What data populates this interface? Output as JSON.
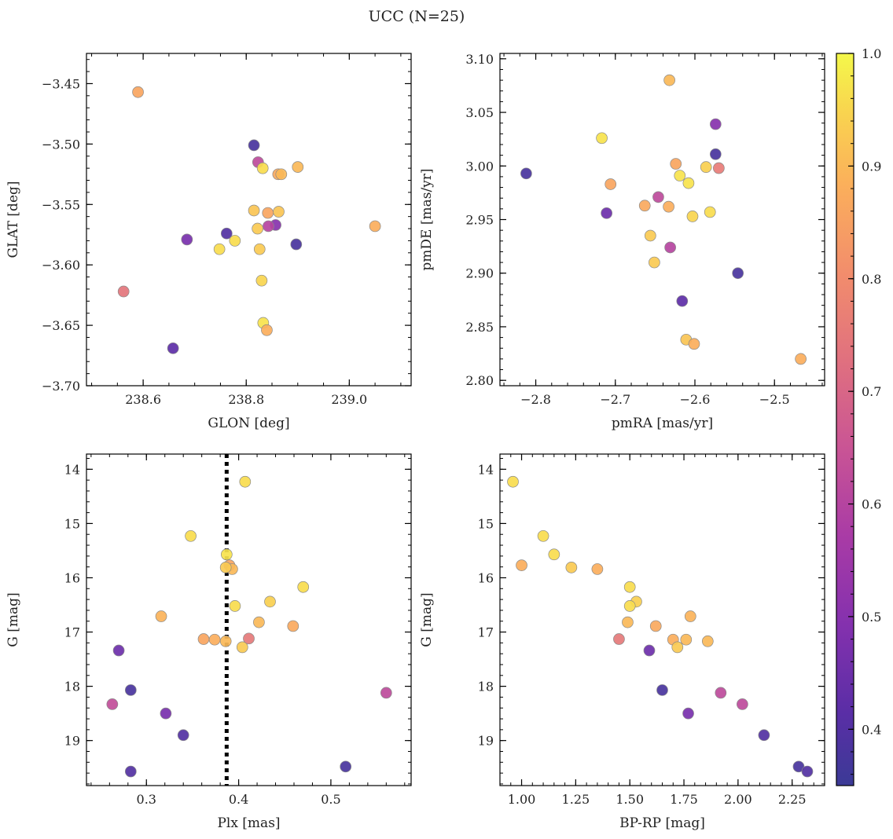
{
  "figure": {
    "title": "UCC (N=25)",
    "colorbar": {
      "min": 0.35,
      "max": 1.0,
      "ticks": [
        0.4,
        0.5,
        0.6,
        0.7,
        0.8,
        0.9,
        1.0
      ],
      "colormap": "plasma"
    }
  },
  "chart_data": [
    {
      "type": "scatter",
      "xlabel": "GLON [deg]",
      "ylabel": "GLAT [deg]",
      "xlim": [
        238.49,
        239.12
      ],
      "ylim": [
        -3.7,
        -3.425
      ],
      "xticks": [
        238.6,
        238.8,
        239.0
      ],
      "yticks": [
        -3.45,
        -3.5,
        -3.55,
        -3.6,
        -3.65,
        -3.7
      ],
      "points": [
        {
          "x": 238.59,
          "y": -3.457,
          "c": 0.86
        },
        {
          "x": 238.815,
          "y": -3.501,
          "c": 0.38
        },
        {
          "x": 238.823,
          "y": -3.515,
          "c": 0.62
        },
        {
          "x": 238.832,
          "y": -3.52,
          "c": 0.96
        },
        {
          "x": 238.9,
          "y": -3.519,
          "c": 0.9
        },
        {
          "x": 238.862,
          "y": -3.525,
          "c": 0.87
        },
        {
          "x": 238.868,
          "y": -3.525,
          "c": 0.9
        },
        {
          "x": 238.815,
          "y": -3.555,
          "c": 0.92
        },
        {
          "x": 238.863,
          "y": -3.556,
          "c": 0.92
        },
        {
          "x": 238.842,
          "y": -3.557,
          "c": 0.86
        },
        {
          "x": 239.05,
          "y": -3.568,
          "c": 0.88
        },
        {
          "x": 238.857,
          "y": -3.567,
          "c": 0.5
        },
        {
          "x": 238.843,
          "y": -3.568,
          "c": 0.6
        },
        {
          "x": 238.822,
          "y": -3.57,
          "c": 0.93
        },
        {
          "x": 238.762,
          "y": -3.574,
          "c": 0.4
        },
        {
          "x": 238.685,
          "y": -3.579,
          "c": 0.47
        },
        {
          "x": 238.778,
          "y": -3.58,
          "c": 0.96
        },
        {
          "x": 238.897,
          "y": -3.583,
          "c": 0.38
        },
        {
          "x": 238.748,
          "y": -3.587,
          "c": 0.96
        },
        {
          "x": 238.826,
          "y": -3.587,
          "c": 0.93
        },
        {
          "x": 238.83,
          "y": -3.613,
          "c": 0.95
        },
        {
          "x": 238.562,
          "y": -3.622,
          "c": 0.74
        },
        {
          "x": 238.833,
          "y": -3.648,
          "c": 0.97
        },
        {
          "x": 238.84,
          "y": -3.654,
          "c": 0.88
        },
        {
          "x": 238.658,
          "y": -3.669,
          "c": 0.42
        }
      ]
    },
    {
      "type": "scatter",
      "xlabel": "pmRA [mas/yr]",
      "ylabel": "pmDE [mas/yr]",
      "xlim": [
        -2.845,
        -2.437
      ],
      "ylim": [
        2.795,
        3.105
      ],
      "xticks": [
        -2.8,
        -2.7,
        -2.6,
        -2.5
      ],
      "yticks": [
        2.8,
        2.85,
        2.9,
        2.95,
        3.0,
        3.05,
        3.1
      ],
      "points": [
        {
          "x": -2.632,
          "y": 3.08,
          "c": 0.9
        },
        {
          "x": -2.574,
          "y": 3.039,
          "c": 0.5
        },
        {
          "x": -2.717,
          "y": 3.026,
          "c": 0.97
        },
        {
          "x": -2.574,
          "y": 3.011,
          "c": 0.38
        },
        {
          "x": -2.624,
          "y": 3.002,
          "c": 0.86
        },
        {
          "x": -2.586,
          "y": 2.999,
          "c": 0.94
        },
        {
          "x": -2.57,
          "y": 2.998,
          "c": 0.76
        },
        {
          "x": -2.812,
          "y": 2.993,
          "c": 0.38
        },
        {
          "x": -2.619,
          "y": 2.991,
          "c": 0.97
        },
        {
          "x": -2.706,
          "y": 2.983,
          "c": 0.86
        },
        {
          "x": -2.608,
          "y": 2.984,
          "c": 0.97
        },
        {
          "x": -2.646,
          "y": 2.971,
          "c": 0.62
        },
        {
          "x": -2.663,
          "y": 2.963,
          "c": 0.87
        },
        {
          "x": -2.633,
          "y": 2.962,
          "c": 0.88
        },
        {
          "x": -2.711,
          "y": 2.956,
          "c": 0.45
        },
        {
          "x": -2.581,
          "y": 2.957,
          "c": 0.96
        },
        {
          "x": -2.603,
          "y": 2.953,
          "c": 0.95
        },
        {
          "x": -2.656,
          "y": 2.935,
          "c": 0.93
        },
        {
          "x": -2.631,
          "y": 2.924,
          "c": 0.6
        },
        {
          "x": -2.651,
          "y": 2.91,
          "c": 0.93
        },
        {
          "x": -2.546,
          "y": 2.9,
          "c": 0.38
        },
        {
          "x": -2.616,
          "y": 2.874,
          "c": 0.42
        },
        {
          "x": -2.611,
          "y": 2.838,
          "c": 0.92
        },
        {
          "x": -2.601,
          "y": 2.834,
          "c": 0.88
        },
        {
          "x": -2.467,
          "y": 2.82,
          "c": 0.88
        }
      ]
    },
    {
      "type": "scatter",
      "xlabel": "Plx [mas]",
      "ylabel": "G [mag]",
      "xlim": [
        0.235,
        0.587
      ],
      "ylim": [
        19.83,
        13.72
      ],
      "y_inverted": true,
      "xticks": [
        0.3,
        0.4,
        0.5
      ],
      "yticks": [
        14,
        15,
        16,
        17,
        18,
        19
      ],
      "vline": {
        "x": 0.387,
        "style": "dotted",
        "color": "#000000"
      },
      "points": [
        {
          "x": 0.407,
          "y": 14.23,
          "c": 0.96
        },
        {
          "x": 0.348,
          "y": 15.23,
          "c": 0.96
        },
        {
          "x": 0.387,
          "y": 15.57,
          "c": 0.97
        },
        {
          "x": 0.39,
          "y": 15.77,
          "c": 0.86
        },
        {
          "x": 0.393,
          "y": 15.84,
          "c": 0.9
        },
        {
          "x": 0.386,
          "y": 15.81,
          "c": 0.93
        },
        {
          "x": 0.47,
          "y": 16.17,
          "c": 0.96
        },
        {
          "x": 0.434,
          "y": 16.44,
          "c": 0.94
        },
        {
          "x": 0.396,
          "y": 16.52,
          "c": 0.96
        },
        {
          "x": 0.316,
          "y": 16.71,
          "c": 0.89
        },
        {
          "x": 0.422,
          "y": 16.82,
          "c": 0.9
        },
        {
          "x": 0.459,
          "y": 16.89,
          "c": 0.87
        },
        {
          "x": 0.362,
          "y": 17.13,
          "c": 0.86
        },
        {
          "x": 0.374,
          "y": 17.14,
          "c": 0.88
        },
        {
          "x": 0.386,
          "y": 17.17,
          "c": 0.9
        },
        {
          "x": 0.411,
          "y": 17.12,
          "c": 0.75
        },
        {
          "x": 0.404,
          "y": 17.28,
          "c": 0.93
        },
        {
          "x": 0.27,
          "y": 17.34,
          "c": 0.45
        },
        {
          "x": 0.283,
          "y": 18.07,
          "c": 0.38
        },
        {
          "x": 0.56,
          "y": 18.12,
          "c": 0.62
        },
        {
          "x": 0.263,
          "y": 18.33,
          "c": 0.63
        },
        {
          "x": 0.321,
          "y": 18.5,
          "c": 0.47
        },
        {
          "x": 0.34,
          "y": 18.9,
          "c": 0.4
        },
        {
          "x": 0.516,
          "y": 19.48,
          "c": 0.38
        },
        {
          "x": 0.283,
          "y": 19.57,
          "c": 0.4
        }
      ]
    },
    {
      "type": "scatter",
      "xlabel": "BP-RP [mag]",
      "ylabel": "G [mag]",
      "xlim": [
        0.9,
        2.4
      ],
      "ylim": [
        19.83,
        13.72
      ],
      "y_inverted": true,
      "xticks": [
        1.0,
        1.25,
        1.5,
        1.75,
        2.0,
        2.25
      ],
      "yticks": [
        14,
        15,
        16,
        17,
        18,
        19
      ],
      "points": [
        {
          "x": 0.96,
          "y": 14.23,
          "c": 0.96
        },
        {
          "x": 1.1,
          "y": 15.23,
          "c": 0.96
        },
        {
          "x": 1.15,
          "y": 15.57,
          "c": 0.96
        },
        {
          "x": 1.0,
          "y": 15.77,
          "c": 0.88
        },
        {
          "x": 1.23,
          "y": 15.81,
          "c": 0.93
        },
        {
          "x": 1.35,
          "y": 15.84,
          "c": 0.88
        },
        {
          "x": 1.5,
          "y": 16.17,
          "c": 0.96
        },
        {
          "x": 1.53,
          "y": 16.44,
          "c": 0.94
        },
        {
          "x": 1.5,
          "y": 16.52,
          "c": 0.96
        },
        {
          "x": 1.78,
          "y": 16.71,
          "c": 0.89
        },
        {
          "x": 1.49,
          "y": 16.82,
          "c": 0.9
        },
        {
          "x": 1.62,
          "y": 16.89,
          "c": 0.87
        },
        {
          "x": 1.45,
          "y": 17.13,
          "c": 0.75
        },
        {
          "x": 1.7,
          "y": 17.14,
          "c": 0.88
        },
        {
          "x": 1.76,
          "y": 17.14,
          "c": 0.9
        },
        {
          "x": 1.86,
          "y": 17.17,
          "c": 0.9
        },
        {
          "x": 1.72,
          "y": 17.28,
          "c": 0.93
        },
        {
          "x": 1.59,
          "y": 17.34,
          "c": 0.45
        },
        {
          "x": 1.65,
          "y": 18.07,
          "c": 0.38
        },
        {
          "x": 1.92,
          "y": 18.12,
          "c": 0.62
        },
        {
          "x": 2.02,
          "y": 18.33,
          "c": 0.62
        },
        {
          "x": 1.77,
          "y": 18.5,
          "c": 0.47
        },
        {
          "x": 2.12,
          "y": 18.9,
          "c": 0.4
        },
        {
          "x": 2.28,
          "y": 19.48,
          "c": 0.38
        },
        {
          "x": 2.32,
          "y": 19.57,
          "c": 0.4
        }
      ]
    }
  ]
}
